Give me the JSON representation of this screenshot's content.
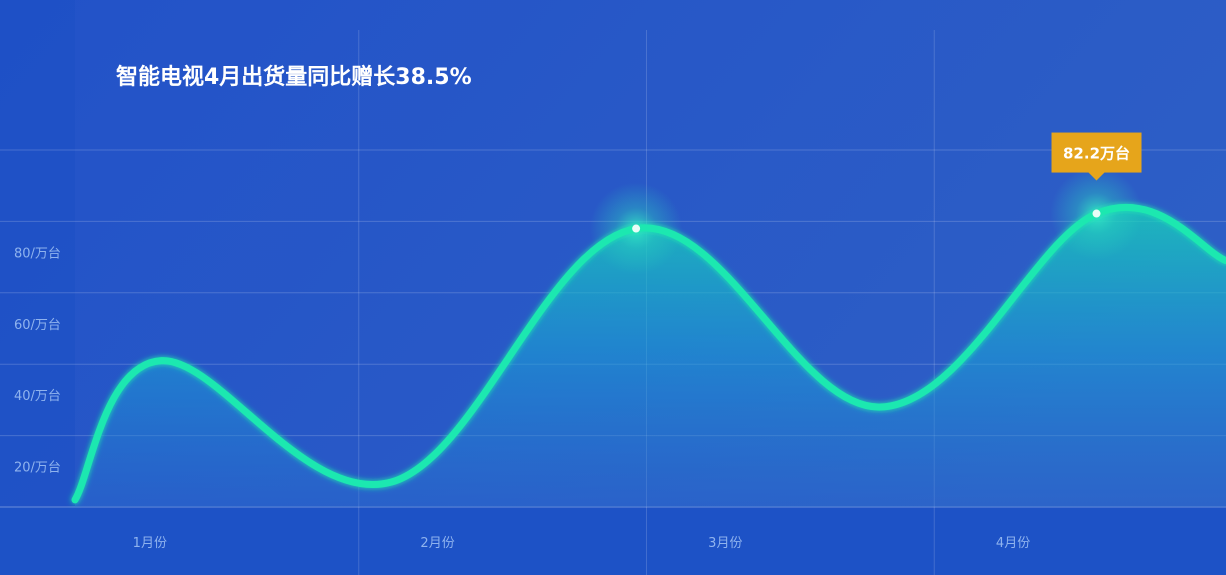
{
  "chart_data": {
    "type": "area",
    "title": "智能电视4月出货量同比赠长38.5%",
    "xlabel": "",
    "ylabel": "",
    "categories": [
      "1月份",
      "2月份",
      "3月份",
      "4月份"
    ],
    "y_ticks": [
      {
        "value": 20,
        "label": "20/万台"
      },
      {
        "value": 40,
        "label": "40/万台"
      },
      {
        "value": 60,
        "label": "60/万台"
      },
      {
        "value": 80,
        "label": "80/万台"
      }
    ],
    "ylim": [
      0,
      100
    ],
    "grid": true,
    "series": [
      {
        "color": "#1ee8b0",
        "curve_points": [
          {
            "x": 0.0,
            "y": 2
          },
          {
            "x": 0.3,
            "y": 41
          },
          {
            "x": 1.1,
            "y": 7
          },
          {
            "x": 1.95,
            "y": 78
          },
          {
            "x": 2.8,
            "y": 28
          },
          {
            "x": 3.55,
            "y": 82.2
          },
          {
            "x": 4.0,
            "y": 69
          }
        ],
        "highlights": [
          {
            "x": 1.95,
            "y": 78
          },
          {
            "x": 3.55,
            "y": 82.2
          }
        ]
      }
    ],
    "annotations": [
      {
        "text": "82.2万台",
        "x": 3.55,
        "y": 82.2,
        "color": "#e6a51b"
      }
    ]
  }
}
